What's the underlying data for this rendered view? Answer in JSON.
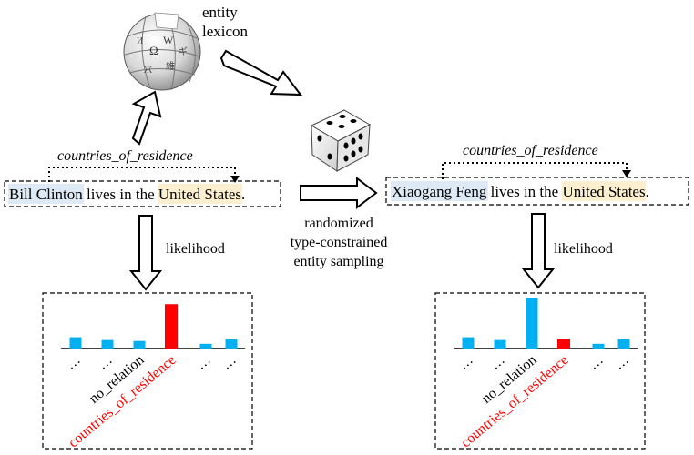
{
  "lexicon": {
    "label_line1": "entity",
    "label_line2": "lexicon",
    "logo_glyphs": [
      "Ω",
      "W",
      "И",
      "ギ",
      "維",
      "Ж"
    ]
  },
  "relation_label": "countries_of_residence",
  "original_sentence": {
    "subject": "Bill Clinton",
    "middle": " lives in the ",
    "object": "United States",
    "end": "."
  },
  "generated_sentence": {
    "subject": "Xiaogang Feng",
    "middle": " lives in the ",
    "object": "United States",
    "end": "."
  },
  "sampling_label": {
    "line1": "randomized",
    "line2": "type-constrained",
    "line3": "entity sampling"
  },
  "likelihood_label": "likelihood",
  "colors": {
    "subject_highlight": "#dde9f5",
    "object_highlight": "#fbefd0",
    "bar_default": "#00b0f0",
    "bar_target": "#ff0000",
    "target_text": "#ff0000"
  },
  "charts": [
    {
      "bars": [
        {
          "label": "…",
          "value": 0.12,
          "target": false
        },
        {
          "label": "…",
          "value": 0.09,
          "target": false
        },
        {
          "label": "no_relation",
          "value": 0.08,
          "target": false
        },
        {
          "label": "countries_of_residence",
          "value": 0.47,
          "target": true
        },
        {
          "label": "…",
          "value": 0.05,
          "target": false
        },
        {
          "label": "…",
          "value": 0.1,
          "target": false
        }
      ]
    },
    {
      "bars": [
        {
          "label": "…",
          "value": 0.12,
          "target": false
        },
        {
          "label": "…",
          "value": 0.09,
          "target": false
        },
        {
          "label": "no_relation",
          "value": 0.53,
          "target": false
        },
        {
          "label": "countries_of_residence",
          "value": 0.1,
          "target": true
        },
        {
          "label": "…",
          "value": 0.05,
          "target": false
        },
        {
          "label": "…",
          "value": 0.1,
          "target": false
        }
      ]
    }
  ]
}
